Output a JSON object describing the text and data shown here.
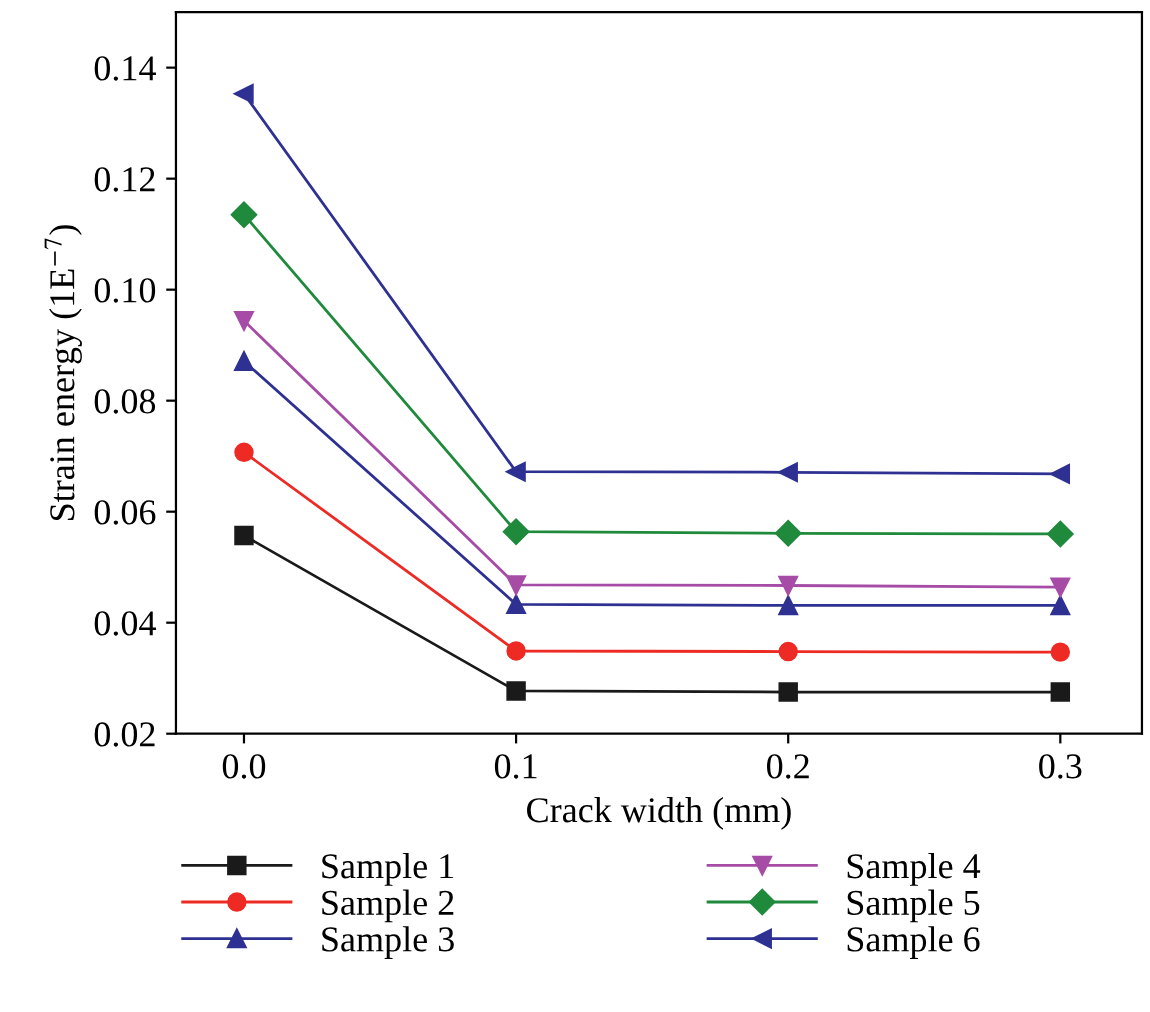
{
  "chart_data": {
    "type": "line",
    "xlabel": "Crack width (mm)",
    "ylabel": "Strain energy (1E$^{−7}$)",
    "x": [
      0.0,
      0.1,
      0.2,
      0.3
    ],
    "series": [
      {
        "name": "Sample 1",
        "color": "#1a1a1a",
        "marker": "square",
        "values": [
          0.0557,
          0.0277,
          0.0275,
          0.0275
        ]
      },
      {
        "name": "Sample 2",
        "color": "#ee2a24",
        "marker": "circle",
        "values": [
          0.0707,
          0.0349,
          0.0348,
          0.0347
        ]
      },
      {
        "name": "Sample 3",
        "color": "#2e3192",
        "marker": "triangle",
        "values": [
          0.0871,
          0.0433,
          0.0431,
          0.0431
        ]
      },
      {
        "name": "Sample 4",
        "color": "#a64ca6",
        "marker": "triangle_down",
        "values": [
          0.0944,
          0.0468,
          0.0467,
          0.0464
        ]
      },
      {
        "name": "Sample 5",
        "color": "#1f8a3c",
        "marker": "diamond",
        "values": [
          0.1135,
          0.0564,
          0.0561,
          0.056
        ]
      },
      {
        "name": "Sample 6",
        "color": "#2e3192",
        "marker": "triangle_left",
        "values": [
          0.1353,
          0.0672,
          0.0671,
          0.0668
        ]
      }
    ],
    "xlim": [
      -0.025,
      0.33
    ],
    "ylim": [
      0.02,
      0.15
    ],
    "xticks": [
      {
        "value": 0.0,
        "label": "0.0"
      },
      0.1,
      0.2,
      0.3
    ],
    "yticks": [
      0.02,
      0.04,
      0.06,
      0.08,
      {
        "value": 0.1,
        "label": "0.10"
      },
      0.12,
      0.14
    ],
    "grid": false,
    "legend": "bottom",
    "line_style": "solid"
  }
}
